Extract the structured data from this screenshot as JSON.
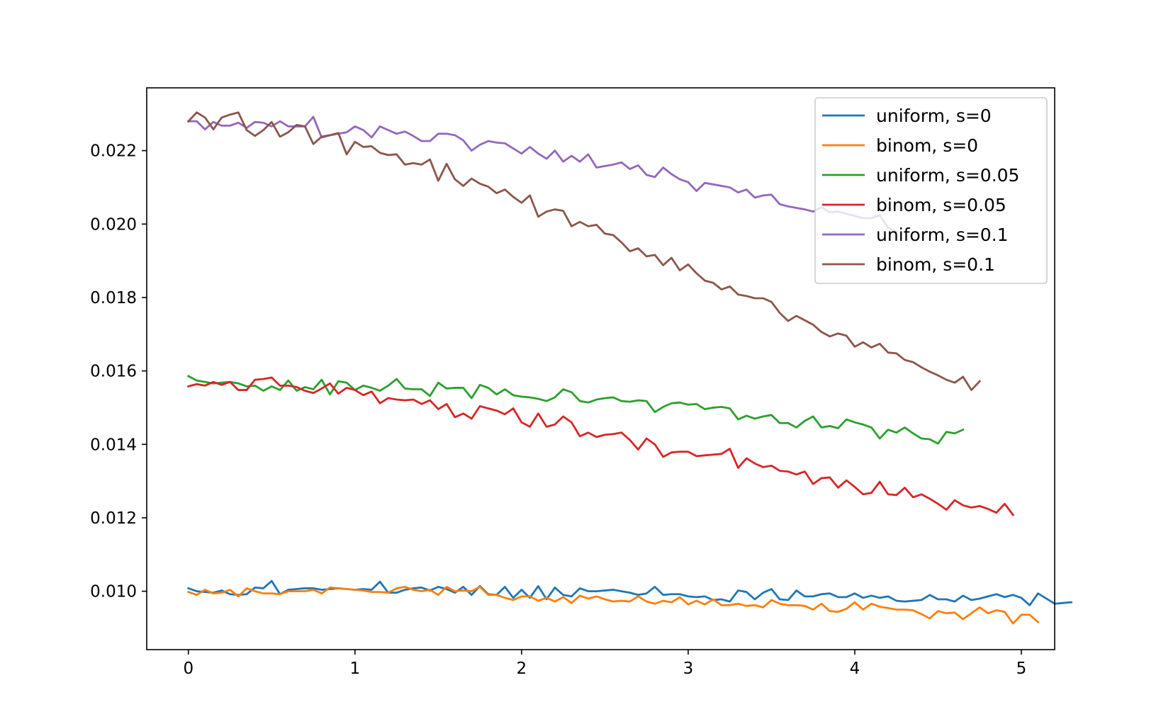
{
  "chart_data": {
    "type": "line",
    "title": "",
    "xlabel": "",
    "ylabel": "",
    "xlim": [
      -0.25,
      5.2
    ],
    "ylim": [
      0.00841,
      0.02371
    ],
    "xticks": [
      0,
      1,
      2,
      3,
      4,
      5
    ],
    "xtick_labels": [
      "0",
      "1",
      "2",
      "3",
      "4",
      "5"
    ],
    "yticks": [
      0.01,
      0.012,
      0.014,
      0.016,
      0.018,
      0.02,
      0.022
    ],
    "ytick_labels": [
      "0.010",
      "0.012",
      "0.014",
      "0.016",
      "0.018",
      "0.020",
      "0.022"
    ],
    "grid": false,
    "legend_position": "upper-right",
    "series": [
      {
        "name": "uniform, s=0",
        "color": "#1f77b4",
        "x_start": 0,
        "x_step": 0.05,
        "values": [
          0.01008,
          0.01,
          0.00998,
          0.00996,
          0.01002,
          0.00992,
          0.0099,
          0.00992,
          0.0101,
          0.01008,
          0.01028,
          0.00992,
          0.01004,
          0.01006,
          0.01008,
          0.01008,
          0.01004,
          0.01006,
          0.01008,
          0.01006,
          0.01004,
          0.01006,
          0.01004,
          0.01026,
          0.00996,
          0.00996,
          0.01004,
          0.01008,
          0.0101,
          0.01002,
          0.01012,
          0.01006,
          0.00996,
          0.01012,
          0.0099,
          0.01014,
          0.00992,
          0.0099,
          0.01012,
          0.00982,
          0.01004,
          0.00982,
          0.01014,
          0.00978,
          0.0101,
          0.0099,
          0.00986,
          0.01008,
          0.01,
          0.01,
          0.01002,
          0.01004,
          0.01,
          0.00996,
          0.0099,
          0.00994,
          0.01012,
          0.0099,
          0.00992,
          0.00992,
          0.00986,
          0.00984,
          0.00986,
          0.00976,
          0.00978,
          0.00972,
          0.01002,
          0.00998,
          0.00978,
          0.00996,
          0.01006,
          0.00978,
          0.00976,
          0.01002,
          0.00986,
          0.00986,
          0.00992,
          0.00994,
          0.00984,
          0.00984,
          0.00994,
          0.00982,
          0.00988,
          0.00982,
          0.00986,
          0.00974,
          0.00972,
          0.00974,
          0.00976,
          0.0099,
          0.00978,
          0.00978,
          0.00972,
          0.00988,
          0.00976,
          0.0098,
          0.00986,
          0.00992,
          0.00984,
          0.0099,
          0.00982,
          0.00962,
          0.00994,
          0.0098,
          0.00966,
          0.00968,
          0.0097
        ]
      },
      {
        "name": "binom, s=0",
        "color": "#ff7f0e",
        "x_start": 0,
        "x_step": 0.05,
        "values": [
          0.00998,
          0.0099,
          0.01004,
          0.00994,
          0.00996,
          0.01004,
          0.00986,
          0.01008,
          0.01,
          0.00994,
          0.00994,
          0.00992,
          0.01,
          0.01,
          0.01,
          0.01004,
          0.00994,
          0.0101,
          0.01008,
          0.01006,
          0.01004,
          0.01002,
          0.00998,
          0.00998,
          0.00996,
          0.01008,
          0.01012,
          0.01004,
          0.01,
          0.01004,
          0.0099,
          0.01012,
          0.01,
          0.01002,
          0.01,
          0.01012,
          0.0099,
          0.0099,
          0.00982,
          0.00976,
          0.00986,
          0.00986,
          0.00974,
          0.00982,
          0.00972,
          0.00984,
          0.00968,
          0.00988,
          0.0098,
          0.00986,
          0.00978,
          0.00972,
          0.00974,
          0.00972,
          0.00986,
          0.00972,
          0.00966,
          0.00974,
          0.0097,
          0.00984,
          0.00964,
          0.00974,
          0.00964,
          0.00978,
          0.00962,
          0.00962,
          0.00966,
          0.0096,
          0.00962,
          0.00956,
          0.00976,
          0.00966,
          0.00962,
          0.00962,
          0.0096,
          0.0095,
          0.00966,
          0.00946,
          0.00944,
          0.00952,
          0.0097,
          0.0095,
          0.00966,
          0.00958,
          0.00954,
          0.0095,
          0.0095,
          0.00948,
          0.00938,
          0.00926,
          0.00946,
          0.0094,
          0.00942,
          0.00924,
          0.0094,
          0.00956,
          0.0094,
          0.00948,
          0.00944,
          0.00912,
          0.00936,
          0.00936,
          0.00916
        ]
      },
      {
        "name": "uniform, s=0.05",
        "color": "#2ca02c",
        "x_start": 0,
        "x_step": 0.05,
        "values": [
          0.01586,
          0.01574,
          0.0157,
          0.01566,
          0.01568,
          0.0157,
          0.01566,
          0.01558,
          0.0156,
          0.01546,
          0.01558,
          0.01548,
          0.01574,
          0.01546,
          0.01556,
          0.0155,
          0.01576,
          0.01536,
          0.01572,
          0.01568,
          0.01548,
          0.0156,
          0.01554,
          0.01546,
          0.0156,
          0.01578,
          0.01552,
          0.0155,
          0.0155,
          0.01532,
          0.01568,
          0.01552,
          0.01554,
          0.01554,
          0.01526,
          0.01562,
          0.01554,
          0.01536,
          0.0155,
          0.01534,
          0.0153,
          0.01528,
          0.01524,
          0.01518,
          0.01528,
          0.0155,
          0.01542,
          0.01518,
          0.01514,
          0.01522,
          0.01526,
          0.01528,
          0.01518,
          0.01516,
          0.0152,
          0.01518,
          0.01488,
          0.01502,
          0.01512,
          0.01514,
          0.01508,
          0.0151,
          0.01496,
          0.015,
          0.01502,
          0.01498,
          0.01468,
          0.01478,
          0.0147,
          0.01476,
          0.0148,
          0.01458,
          0.01458,
          0.01446,
          0.01464,
          0.01476,
          0.01446,
          0.0145,
          0.01444,
          0.01468,
          0.0146,
          0.01454,
          0.01446,
          0.01416,
          0.0144,
          0.01432,
          0.01446,
          0.0143,
          0.01416,
          0.01414,
          0.01402,
          0.01434,
          0.0143,
          0.0144
        ]
      },
      {
        "name": "binom, s=0.05",
        "color": "#d62728",
        "x_start": 0,
        "x_step": 0.05,
        "values": [
          0.01558,
          0.01564,
          0.0156,
          0.0157,
          0.01562,
          0.0157,
          0.01548,
          0.01548,
          0.01576,
          0.01578,
          0.01582,
          0.0156,
          0.0156,
          0.01556,
          0.01546,
          0.0154,
          0.01552,
          0.01566,
          0.01538,
          0.01554,
          0.01548,
          0.01534,
          0.01544,
          0.01512,
          0.01526,
          0.01522,
          0.0152,
          0.01522,
          0.0151,
          0.0152,
          0.01496,
          0.0151,
          0.01474,
          0.01484,
          0.0147,
          0.01504,
          0.01498,
          0.01492,
          0.01482,
          0.01498,
          0.0146,
          0.01448,
          0.01484,
          0.01448,
          0.01454,
          0.01476,
          0.0146,
          0.01422,
          0.01432,
          0.0142,
          0.01426,
          0.01428,
          0.01432,
          0.01412,
          0.01386,
          0.01416,
          0.014,
          0.01366,
          0.01378,
          0.0138,
          0.0138,
          0.01368,
          0.0137,
          0.01372,
          0.01374,
          0.01388,
          0.01336,
          0.01362,
          0.01348,
          0.01338,
          0.01342,
          0.01328,
          0.01326,
          0.01318,
          0.01326,
          0.01292,
          0.01308,
          0.0131,
          0.01282,
          0.01302,
          0.01284,
          0.01264,
          0.01268,
          0.01298,
          0.01264,
          0.01262,
          0.01282,
          0.01256,
          0.01264,
          0.01252,
          0.01238,
          0.01222,
          0.01248,
          0.01234,
          0.01228,
          0.01232,
          0.01224,
          0.01214,
          0.01238,
          0.01208
        ]
      },
      {
        "name": "uniform, s=0.1",
        "color": "#9467bd",
        "x_start": 0,
        "x_step": 0.05,
        "values": [
          0.0228,
          0.0228,
          0.02258,
          0.02278,
          0.02268,
          0.02268,
          0.02276,
          0.02262,
          0.02278,
          0.02276,
          0.02266,
          0.0228,
          0.02266,
          0.02266,
          0.02266,
          0.02292,
          0.02236,
          0.02242,
          0.02246,
          0.0225,
          0.02266,
          0.02256,
          0.02236,
          0.02266,
          0.02256,
          0.02246,
          0.02252,
          0.0224,
          0.02226,
          0.02226,
          0.02246,
          0.02246,
          0.02242,
          0.02228,
          0.022,
          0.02216,
          0.02226,
          0.02222,
          0.0222,
          0.02206,
          0.02192,
          0.0221,
          0.02192,
          0.02178,
          0.022,
          0.0217,
          0.02186,
          0.0217,
          0.0219,
          0.02154,
          0.02158,
          0.02162,
          0.02168,
          0.0215,
          0.0216,
          0.02134,
          0.02128,
          0.02154,
          0.02136,
          0.02122,
          0.02114,
          0.0209,
          0.02112,
          0.02108,
          0.02104,
          0.021,
          0.02086,
          0.02094,
          0.02072,
          0.02078,
          0.0208,
          0.02054,
          0.02048,
          0.02044,
          0.0204,
          0.02034,
          0.02046,
          0.02032,
          0.02034,
          0.02028,
          0.02022,
          0.02016,
          0.02016,
          0.02024,
          0.0199,
          0.0198
        ]
      },
      {
        "name": "binom, s=0.1",
        "color": "#8c564b",
        "x_start": 0,
        "x_step": 0.05,
        "values": [
          0.0228,
          0.02304,
          0.0229,
          0.02258,
          0.0229,
          0.02298,
          0.02304,
          0.02256,
          0.0224,
          0.02256,
          0.02278,
          0.02238,
          0.0225,
          0.0227,
          0.02266,
          0.02218,
          0.02238,
          0.02242,
          0.02248,
          0.0219,
          0.02224,
          0.0221,
          0.02212,
          0.02194,
          0.02188,
          0.0219,
          0.02162,
          0.02166,
          0.02162,
          0.02176,
          0.02118,
          0.02164,
          0.02122,
          0.02104,
          0.02124,
          0.0211,
          0.02102,
          0.02084,
          0.02094,
          0.02074,
          0.02058,
          0.02078,
          0.0202,
          0.02034,
          0.0204,
          0.02036,
          0.01994,
          0.02006,
          0.01994,
          0.01998,
          0.01974,
          0.0197,
          0.0195,
          0.01926,
          0.01934,
          0.01912,
          0.01916,
          0.01888,
          0.01908,
          0.01874,
          0.0189,
          0.01866,
          0.01846,
          0.0184,
          0.01822,
          0.0183,
          0.01808,
          0.01804,
          0.01798,
          0.01798,
          0.01788,
          0.01758,
          0.01736,
          0.0175,
          0.01738,
          0.01726,
          0.01706,
          0.01694,
          0.01702,
          0.01696,
          0.01666,
          0.01678,
          0.01664,
          0.01674,
          0.0165,
          0.01648,
          0.0163,
          0.01624,
          0.0161,
          0.01598,
          0.01588,
          0.01576,
          0.01568,
          0.01584,
          0.01548,
          0.01572
        ]
      }
    ]
  }
}
